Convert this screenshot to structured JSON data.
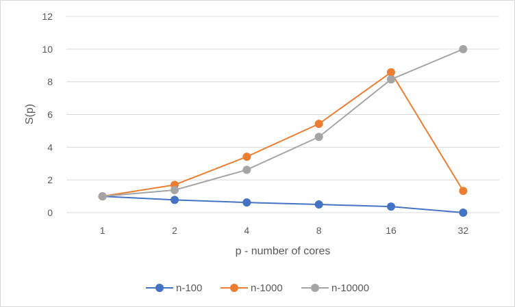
{
  "chart_data": {
    "type": "line",
    "categories": [
      "1",
      "2",
      "4",
      "8",
      "16",
      "32"
    ],
    "series": [
      {
        "name": "n-100",
        "color": "#4472c4",
        "values": [
          1.0,
          0.78,
          0.62,
          0.5,
          0.37,
          0.0
        ]
      },
      {
        "name": "n-1000",
        "color": "#ed7d31",
        "values": [
          1.0,
          1.7,
          3.42,
          5.43,
          8.58,
          1.33
        ]
      },
      {
        "name": "n-10000",
        "color": "#a5a5a5",
        "values": [
          1.0,
          1.38,
          2.62,
          4.63,
          8.15,
          10.0
        ]
      }
    ],
    "title": "",
    "xlabel": "p - number of cores",
    "ylabel": "S(p)",
    "ylim": [
      0,
      12
    ],
    "yticks": [
      "0",
      "2",
      "4",
      "6",
      "8",
      "10",
      "12"
    ],
    "grid": "horizontal",
    "legend": "bottom"
  }
}
